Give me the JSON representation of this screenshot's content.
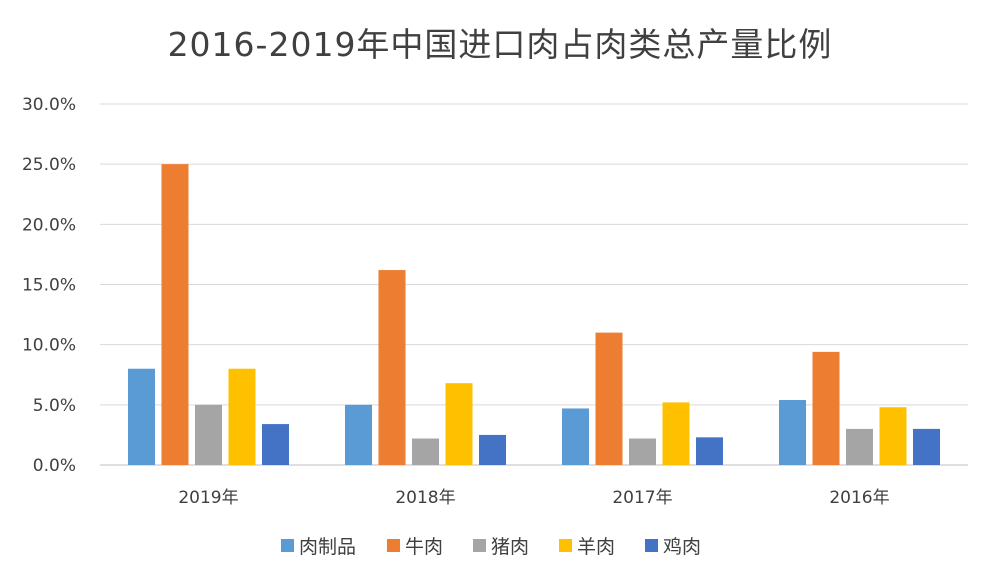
{
  "chart_data": {
    "type": "bar",
    "title": "2016-2019年中国进口肉占肉类总产量比例",
    "categories": [
      "2019年",
      "2018年",
      "2017年",
      "2016年"
    ],
    "series": [
      {
        "name": "肉制品",
        "color": "#5b9bd5",
        "values": [
          8.0,
          5.0,
          4.7,
          5.4
        ]
      },
      {
        "name": "牛肉",
        "color": "#ed7d31",
        "values": [
          25.0,
          16.2,
          11.0,
          9.4
        ]
      },
      {
        "name": "猪肉",
        "color": "#a5a5a5",
        "values": [
          5.0,
          2.2,
          2.2,
          3.0
        ]
      },
      {
        "name": "羊肉",
        "color": "#ffc000",
        "values": [
          8.0,
          6.8,
          5.2,
          4.8
        ]
      },
      {
        "name": "鸡肉",
        "color": "#4472c4",
        "values": [
          3.4,
          2.5,
          2.3,
          3.0
        ]
      }
    ],
    "y_ticks": [
      "0.0%",
      "5.0%",
      "10.0%",
      "15.0%",
      "20.0%",
      "25.0%",
      "30.0%"
    ],
    "ylim": [
      0,
      30
    ],
    "grid": true,
    "legend_position": "bottom"
  }
}
